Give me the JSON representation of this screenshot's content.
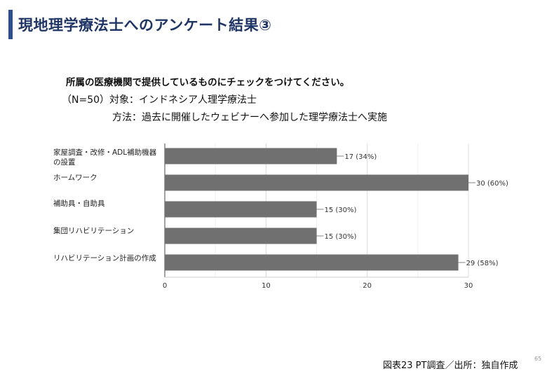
{
  "slide": {
    "title": "現地理学療法士へのアンケート結果③",
    "question": "所属の医療機関で提供しているものにチェックをつけてください。",
    "subject_line": "（N=50）対象：インドネシア人理学療法士",
    "method_line": "方法：過去に開催したウェビナーへ参加した理学療法士へ実施",
    "caption": "図表23 PT調査／出所：独自作成",
    "page_number": "65"
  },
  "chart_data": {
    "type": "bar",
    "orientation": "horizontal",
    "categories": [
      "家屋調査・改修・ADL補助機器の設置",
      "ホームワーク",
      "補助具・自助具",
      "集団リハビリテーション",
      "リハビリテーション計画の作成"
    ],
    "values": [
      17,
      30,
      15,
      15,
      29
    ],
    "data_labels": [
      "17 (34%)",
      "30 (60%)",
      "15 (30%)",
      "15 (30%)",
      "29 (58%)"
    ],
    "xlim": [
      0,
      30
    ],
    "xticks": [
      0,
      10,
      20,
      30
    ],
    "grid": true,
    "bar_color": "#707070",
    "title": "",
    "xlabel": "",
    "ylabel": ""
  }
}
